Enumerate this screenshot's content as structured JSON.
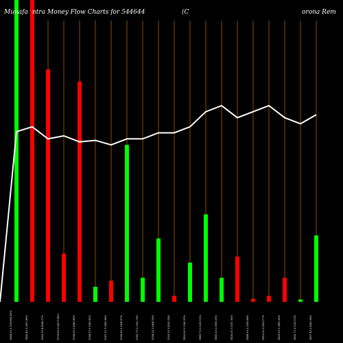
{
  "header": {
    "title_left": "Munafa",
    "title_mid": "ntra  Money Flow  Charts for 544644",
    "title_bracket": "(C",
    "title_right": "orona  Rem"
  },
  "chart_data": {
    "type": "bar",
    "title": "Munafa ntra Money Flow Charts for 544644 (C orona Rem",
    "categories": [
      "1444.55 2.11/9996.43%",
      "1465.40 3.38/7.85%",
      "1362.90 4.49/4.27%",
      "1374.80 3.68/73.45%",
      "1398.65 2.44/0.49%",
      "1384.15 3.14/0.43%",
      "1387.25 1.94/1.08%",
      "1396.60 3.16/4.67%",
      "1381.75 2.22/0.78%",
      "1394.25 2.66/4.29%",
      "1393.35 2.45/0.24%",
      "1402.65 2.19/6.25%",
      "1441.70 3.22/5.12%",
      "1460.20 2.69/6.20%",
      "1430.05 1.53/7.90%",
      "1446.90 2.25/8.64%",
      "1416.55 3.60/1.17%",
      "1425.00 2.34/1.00%",
      "1402.70 3.12/2.13%",
      "1407.45 2.44/0.04%"
    ],
    "series": [
      {
        "values": [
          100,
          100,
          77,
          16,
          73,
          5,
          7,
          52,
          8,
          21,
          2,
          13,
          29,
          8,
          15,
          1,
          2,
          8,
          0.8,
          22
        ],
        "colors": [
          "#00ff00",
          "#ff0000",
          "#ff0000",
          "#ff0000",
          "#ff0000",
          "#00ff00",
          "#ff0000",
          "#00ff00",
          "#00ff00",
          "#00ff00",
          "#ff0000",
          "#00ff00",
          "#00ff00",
          "#00ff00",
          "#ff0000",
          "#ff0000",
          "#ff0000",
          "#ff0000",
          "#00ff00",
          "#00ff00"
        ]
      },
      {
        "values": [
          2,
          58,
          54,
          55,
          53,
          53.5,
          52,
          54,
          54,
          56,
          56,
          58,
          63,
          65,
          61,
          63,
          65,
          61,
          59,
          62
        ]
      }
    ],
    "ylim": [
      0,
      100
    ],
    "grid": true,
    "colors": {
      "background": "#000000",
      "grid": "#aa6600",
      "line": "#ffffff",
      "up": "#00ff00",
      "down": "#ff0000",
      "text": "#ffffff"
    }
  }
}
